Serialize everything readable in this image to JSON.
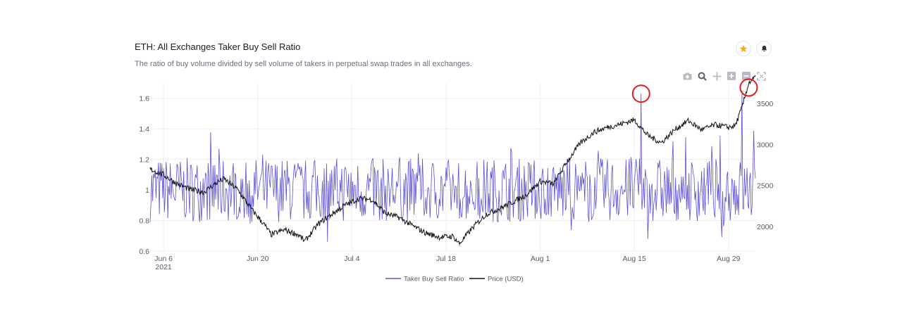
{
  "header": {
    "title": "ETH: All Exchanges Taker Buy Sell Ratio",
    "subtitle": "The ratio of buy volume divided by sell volume of takers in perpetual swap trades in all exchanges."
  },
  "toolbar": {
    "icons": [
      "camera-icon",
      "zoom-icon",
      "pan-icon",
      "zoom-in-icon",
      "zoom-out-icon",
      "autoscale-icon"
    ]
  },
  "actions": {
    "icons": [
      "star-icon",
      "bell-icon"
    ],
    "star_color": "#f6a821"
  },
  "chart_data": {
    "type": "line",
    "x_ticks": [
      {
        "date": "2021-06-06",
        "label": "Jun 6",
        "sublabel": "2021"
      },
      {
        "date": "2021-06-20",
        "label": "Jun 20",
        "sublabel": ""
      },
      {
        "date": "2021-07-04",
        "label": "Jul 4",
        "sublabel": ""
      },
      {
        "date": "2021-07-18",
        "label": "Jul 18",
        "sublabel": ""
      },
      {
        "date": "2021-08-01",
        "label": "Aug 1",
        "sublabel": ""
      },
      {
        "date": "2021-08-15",
        "label": "Aug 15",
        "sublabel": ""
      },
      {
        "date": "2021-08-29",
        "label": "Aug 29",
        "sublabel": ""
      }
    ],
    "xlim": [
      "2021-06-04",
      "2021-09-02"
    ],
    "y_left": {
      "ticks": [
        "0.6",
        "0.8",
        "1",
        "1.2",
        "1.4",
        "1.6"
      ],
      "range": [
        0.6,
        1.7
      ]
    },
    "y_right": {
      "ticks": [
        "2000",
        "2500",
        "3000",
        "3500"
      ],
      "range": [
        1700,
        3750
      ]
    },
    "legend_placement": "bottom-center",
    "grid": true,
    "series": [
      {
        "name": "Taker Buy Sell Ratio",
        "axis": "left",
        "color": "#5b50d6",
        "style": "high-frequency oscillation between approx. 0.7 and 1.3",
        "spikes": [
          {
            "date": "2021-08-16",
            "value": 1.63
          },
          {
            "date": "2021-08-17",
            "value": 0.68
          },
          {
            "date": "2021-08-31",
            "value": 1.65
          },
          {
            "date": "2021-08-28",
            "value": 0.69
          }
        ]
      },
      {
        "name": "Price (USD)",
        "axis": "right",
        "color": "#111111",
        "points": [
          [
            "2021-06-04",
            2700
          ],
          [
            "2021-06-06",
            2630
          ],
          [
            "2021-06-08",
            2520
          ],
          [
            "2021-06-10",
            2450
          ],
          [
            "2021-06-12",
            2420
          ],
          [
            "2021-06-14",
            2540
          ],
          [
            "2021-06-15",
            2580
          ],
          [
            "2021-06-17",
            2450
          ],
          [
            "2021-06-19",
            2220
          ],
          [
            "2021-06-21",
            2020
          ],
          [
            "2021-06-22",
            1900
          ],
          [
            "2021-06-24",
            1960
          ],
          [
            "2021-06-26",
            1900
          ],
          [
            "2021-06-27",
            1820
          ],
          [
            "2021-06-29",
            2030
          ],
          [
            "2021-07-01",
            2150
          ],
          [
            "2021-07-03",
            2260
          ],
          [
            "2021-07-05",
            2340
          ],
          [
            "2021-07-07",
            2330
          ],
          [
            "2021-07-09",
            2160
          ],
          [
            "2021-07-11",
            2110
          ],
          [
            "2021-07-13",
            2010
          ],
          [
            "2021-07-15",
            1920
          ],
          [
            "2021-07-17",
            1870
          ],
          [
            "2021-07-19",
            1880
          ],
          [
            "2021-07-20",
            1790
          ],
          [
            "2021-07-22",
            1990
          ],
          [
            "2021-07-24",
            2150
          ],
          [
            "2021-07-26",
            2220
          ],
          [
            "2021-07-28",
            2300
          ],
          [
            "2021-07-30",
            2390
          ],
          [
            "2021-08-01",
            2550
          ],
          [
            "2021-08-03",
            2520
          ],
          [
            "2021-08-05",
            2790
          ],
          [
            "2021-08-07",
            3020
          ],
          [
            "2021-08-09",
            3150
          ],
          [
            "2021-08-11",
            3210
          ],
          [
            "2021-08-13",
            3250
          ],
          [
            "2021-08-15",
            3300
          ],
          [
            "2021-08-17",
            3110
          ],
          [
            "2021-08-19",
            3020
          ],
          [
            "2021-08-21",
            3180
          ],
          [
            "2021-08-23",
            3290
          ],
          [
            "2021-08-25",
            3180
          ],
          [
            "2021-08-27",
            3240
          ],
          [
            "2021-08-29",
            3210
          ],
          [
            "2021-08-30",
            3230
          ],
          [
            "2021-08-31",
            3450
          ],
          [
            "2021-09-01",
            3750
          ],
          [
            "2021-09-02",
            3820
          ]
        ]
      }
    ],
    "highlights": [
      {
        "date": "2021-08-16",
        "value": 1.63,
        "axis": "left",
        "color": "#e01c1c"
      },
      {
        "date": "2021-09-01",
        "value": 1.67,
        "axis": "left",
        "color": "#e01c1c"
      }
    ]
  }
}
